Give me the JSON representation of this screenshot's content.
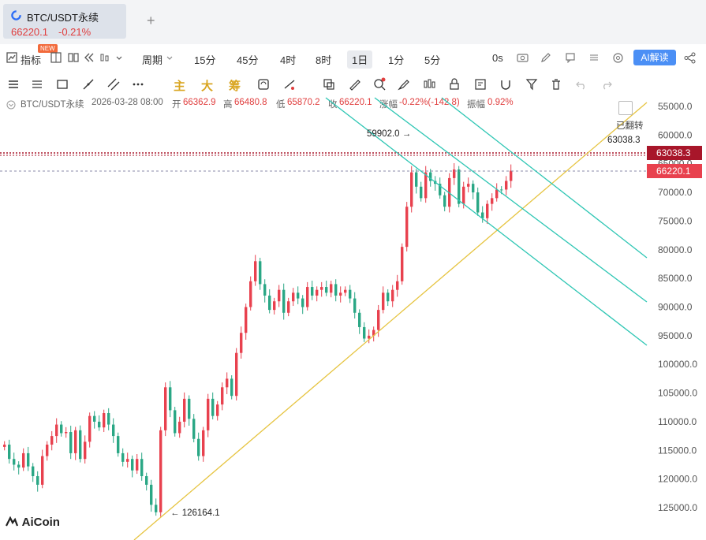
{
  "tab": {
    "title": "BTC/USDT永续",
    "price": "66220.1",
    "change": "-0.21%",
    "add": "+"
  },
  "toolbar": {
    "indicators_label": "指标",
    "new_badge": "NEW",
    "period_label": "周期",
    "intervals": [
      "15分",
      "45分",
      "4时",
      "8时",
      "1日",
      "1分",
      "5分"
    ],
    "selected_interval": "1日",
    "seconds_label": "0s",
    "ai_label": "AI解读"
  },
  "drawbar": {
    "zhu": "主",
    "da": "大",
    "chou": "筹"
  },
  "info": {
    "symbol": "BTC/USDT永续",
    "datetime": "2026-03-28 08:00",
    "open_label": "开",
    "open": "66362.9",
    "high_label": "高",
    "high": "66480.8",
    "low_label": "低",
    "low": "65870.2",
    "close_label": "收",
    "close": "66220.1",
    "chg_label": "涨幅",
    "chg": "-0.22%(-142.8)",
    "amp_label": "振幅",
    "amp": "0.92%"
  },
  "chart_data": {
    "type": "candlestick",
    "y_axis_inverted": true,
    "y_ticks": [
      "55000.0",
      "60000.0",
      "65000.0",
      "70000.0",
      "75000.0",
      "80000.0",
      "85000.0",
      "90000.0",
      "95000.0",
      "100000.0",
      "105000.0",
      "110000.0",
      "115000.0",
      "120000.0",
      "125000.0"
    ],
    "ylim": [
      54000,
      127000
    ],
    "price_lines": [
      {
        "label": "63038.3",
        "value": 63038.3,
        "color": "#a8162a"
      },
      {
        "label": "66220.1",
        "value": 66220.1,
        "color": "#e8414e"
      }
    ],
    "annotations": [
      {
        "text": "59902.0",
        "price": 59902.0
      },
      {
        "text": "126164.1",
        "price": 126164.1
      },
      {
        "text": "63038.3",
        "price": 63038.3
      }
    ],
    "close_path": [
      114000,
      116500,
      117500,
      118000,
      115500,
      117800,
      119500,
      121000,
      116000,
      114000,
      112500,
      110500,
      112000,
      111800,
      115500,
      111500,
      116500,
      113500,
      109000,
      110000,
      111000,
      108500,
      110500,
      112500,
      115500,
      117000,
      116500,
      118500,
      116500,
      119500,
      121000,
      124500,
      125800,
      111500,
      104000,
      108000,
      112000,
      110000,
      106000,
      109500,
      113000,
      116000,
      111500,
      106000,
      109000,
      107000,
      104000,
      102500,
      105500,
      98000,
      94500,
      90000,
      85500,
      82000,
      86000,
      88000,
      90500,
      89000,
      87000,
      91000,
      89000,
      87500,
      88500,
      90000,
      86500,
      88000,
      87000,
      86500,
      87500,
      86000,
      88000,
      87500,
      87000,
      88500,
      91000,
      93500,
      95500,
      95000,
      94000,
      90500,
      87500,
      89000,
      87000,
      85500,
      79500,
      72500,
      66500,
      69000,
      71000,
      66500,
      68000,
      68500,
      70500,
      72500,
      67500,
      66000,
      72000,
      69000,
      68500,
      70000,
      73500,
      74500,
      72000,
      71000,
      69500,
      69500,
      68000,
      66220
    ]
  },
  "labels": {
    "flip": "已翻转",
    "brand": "AiCoin"
  }
}
